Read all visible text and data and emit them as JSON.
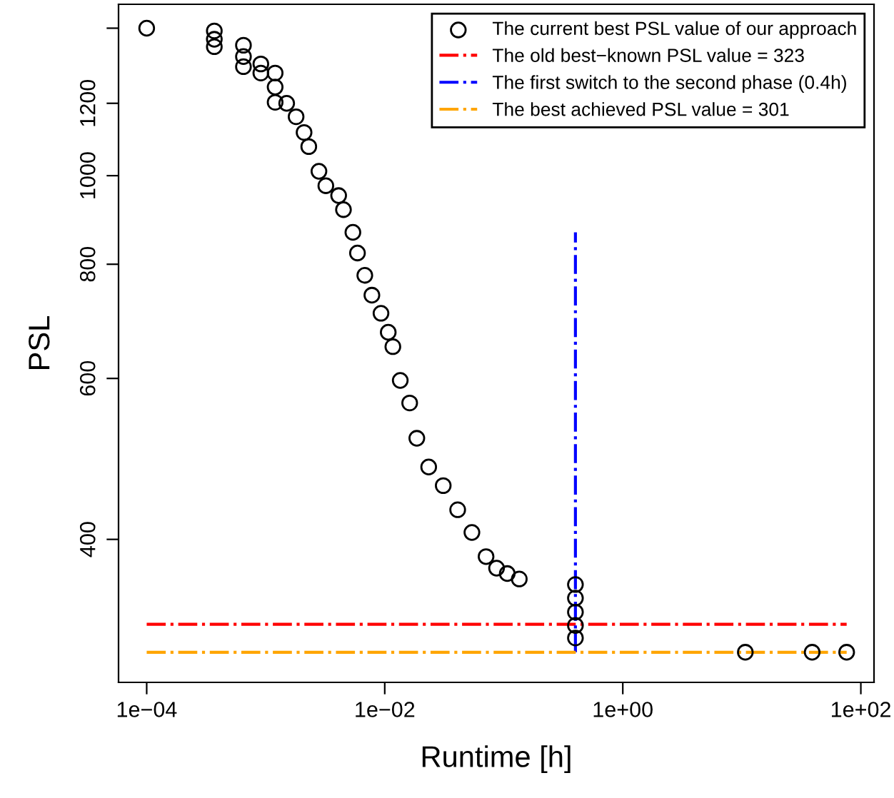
{
  "chart_data": {
    "type": "scatter",
    "xlabel": "Runtime [h]",
    "ylabel": "PSL",
    "log": "xy",
    "xlim": [
      5.8e-05,
      129
    ],
    "ylim": [
      279,
      1540
    ],
    "xticks": [
      {
        "value": 0.0001,
        "label": "1e−04"
      },
      {
        "value": 0.01,
        "label": "1e−02"
      },
      {
        "value": 1,
        "label": "1e+00"
      },
      {
        "value": 100,
        "label": "1e+02"
      }
    ],
    "yticks": [
      400,
      600,
      800,
      1000,
      1200,
      {
        "value": 1450,
        "label": null
      }
    ],
    "grid": false,
    "legend": "top right",
    "series": [
      {
        "name": "The current best PSL value of our approach",
        "marker": "circle",
        "color": "#000000",
        "x": [
          0.0001,
          0.00037,
          0.00037,
          0.00037,
          0.00065,
          0.00065,
          0.00065,
          0.00091,
          0.00091,
          0.0012,
          0.0012,
          0.0012,
          0.0015,
          0.0018,
          0.0021,
          0.0023,
          0.0028,
          0.0032,
          0.0041,
          0.0045,
          0.0054,
          0.0059,
          0.0068,
          0.0078,
          0.0093,
          0.0107,
          0.0117,
          0.0135,
          0.0162,
          0.0186,
          0.0234,
          0.031,
          0.041,
          0.054,
          0.071,
          0.087,
          0.107,
          0.135,
          0.4,
          0.4,
          0.4,
          0.4,
          0.4,
          10.7,
          39,
          76
        ],
        "values": [
          1450,
          1440,
          1410,
          1384,
          1389,
          1350,
          1316,
          1325,
          1295,
          1295,
          1250,
          1203,
          1200,
          1160,
          1115,
          1076,
          1011,
          975,
          951,
          918,
          867,
          823,
          778,
          740,
          707,
          674,
          650,
          597,
          564,
          516,
          480,
          458,
          431,
          407,
          383,
          372,
          367,
          362,
          357,
          345,
          333,
          322,
          312,
          301,
          301,
          301
        ]
      },
      {
        "name": "The old best−known PSL value = 323",
        "type": "line",
        "marker": "none",
        "line_style": "dashdot",
        "color": "#ff0000",
        "x": [
          0.0001,
          76
        ],
        "values": [
          323,
          323
        ]
      },
      {
        "name": "The first switch to the second phase (0.4h)",
        "type": "line",
        "marker": "none",
        "line_style": "dashdot",
        "color": "#0000ff",
        "x": [
          0.4,
          0.4
        ],
        "values": [
          301,
          867
        ]
      },
      {
        "name": "The best achieved PSL value = 301",
        "type": "line",
        "marker": "none",
        "line_style": "dashdot",
        "color": "#ffa500",
        "x": [
          0.0001,
          76
        ],
        "values": [
          301,
          301
        ]
      }
    ]
  }
}
